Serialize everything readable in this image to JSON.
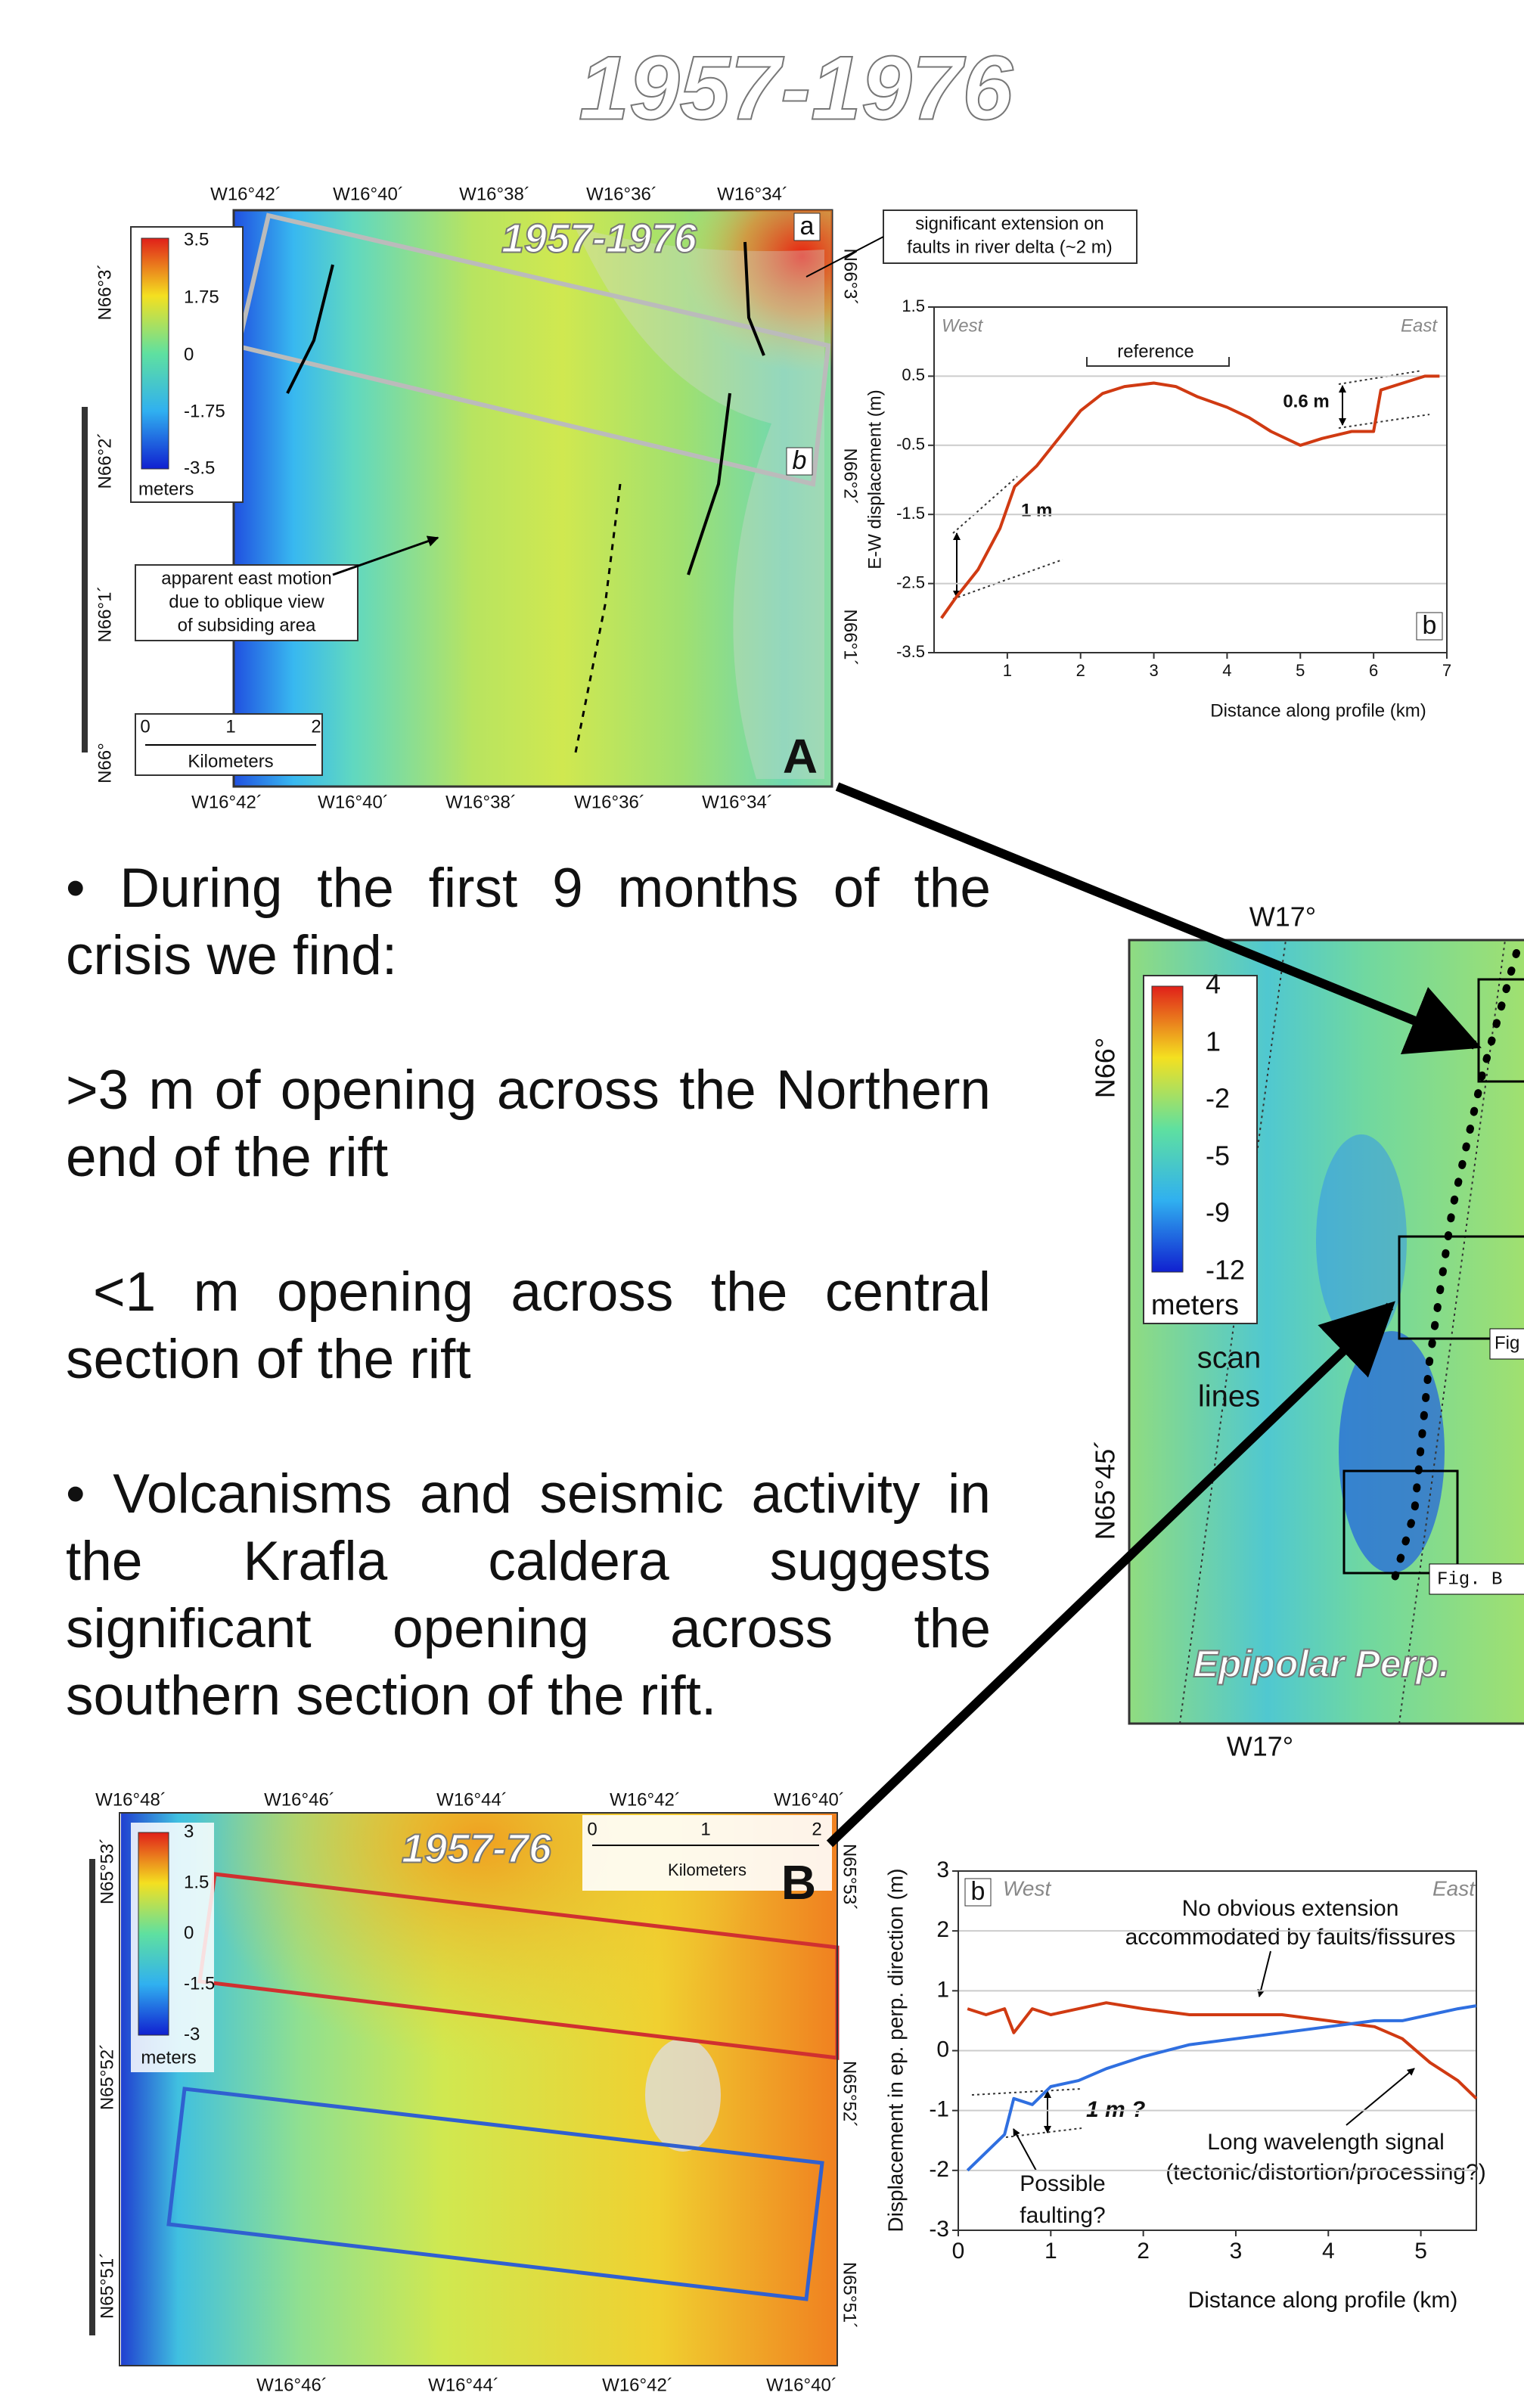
{
  "title": "1957-1976",
  "map_a": {
    "inset_title": "1957-1976",
    "panel_label": "A",
    "strip_labels": [
      "a",
      "b"
    ],
    "lon_labels_top": [
      "W16°42´",
      "W16°40´",
      "W16°38´",
      "W16°36´",
      "W16°34´"
    ],
    "lon_labels_bottom": [
      "W16°42´",
      "W16°40´",
      "W16°38´",
      "W16°36´",
      "W16°34´"
    ],
    "lat_labels_left": [
      "N66°3´",
      "N66°2´",
      "N66°1´",
      "N66°"
    ],
    "lat_labels_right": [
      "N66°3´",
      "N66°2´",
      "N66°1´"
    ],
    "colorbar_ticks": [
      "3.5",
      "1.75",
      "0",
      "-1.75",
      "-3.5"
    ],
    "colorbar_unit": "meters",
    "scale_ticks": [
      "0",
      "1",
      "2"
    ],
    "scale_unit": "Kilometers",
    "annotation": [
      "apparent east motion",
      "due to oblique view",
      "of subsiding area"
    ],
    "callout": [
      "significant extension on",
      "faults in river delta (~2 m)"
    ]
  },
  "text": {
    "paragraphs": [
      "• During the first 9 months of the crisis we find:",
      ">3 m of opening across the Northern end of the rift",
      "<1 m opening across the central section of the rift",
      "• Volcanisms and seismic activity in the Krafla caldera suggests significant opening across the southern section of the rift."
    ]
  },
  "map_right": {
    "lon_label_top": "W17°",
    "lon_label_bottom": "W17°",
    "lat_labels": [
      "N66°",
      "N65°45´"
    ],
    "colorbar_ticks": [
      "4",
      "1",
      "-2",
      "-5",
      "-9",
      "-12"
    ],
    "colorbar_unit": "meters",
    "annotation": [
      "scan",
      "lines"
    ],
    "box_labels": [
      "Fig",
      "Fig. B"
    ],
    "inset_title": "Epipolar Perp."
  },
  "map_b": {
    "inset_title": "1957-76",
    "panel_label": "B",
    "lon_labels_top": [
      "W16°48´",
      "W16°46´",
      "W16°44´",
      "W16°42´",
      "W16°40´"
    ],
    "lon_labels_bottom": [
      "W16°46´",
      "W16°44´",
      "W16°42´",
      "W16°40´"
    ],
    "lat_labels_left": [
      "N65°53´",
      "N65°52´",
      "N65°51´"
    ],
    "lat_labels_right": [
      "N65°53´",
      "N65°52´",
      "N65°51´"
    ],
    "colorbar_ticks": [
      "3",
      "1.5",
      "0",
      "-1.5",
      "-3"
    ],
    "colorbar_unit": "meters",
    "scale_ticks": [
      "0",
      "1",
      "2"
    ],
    "scale_unit": "Kilometers"
  },
  "chart_data": [
    {
      "type": "line",
      "y_label": "E-W displacement (m)",
      "x_label": "Distance along profile (km)",
      "annotations": [
        "West",
        "East",
        "reference",
        "0.6 m",
        "1 m",
        "b"
      ],
      "x": [
        0.1,
        0.3,
        0.6,
        0.9,
        1.1,
        1.4,
        1.7,
        2.0,
        2.3,
        2.6,
        3.0,
        3.3,
        3.6,
        4.0,
        4.3,
        4.6,
        5.0,
        5.3,
        5.7,
        6.0,
        6.1,
        6.4,
        6.7,
        6.9
      ],
      "series": [
        {
          "color": "#d03a12",
          "values": [
            -3.0,
            -2.7,
            -2.3,
            -1.7,
            -1.1,
            -0.8,
            -0.4,
            0.0,
            0.25,
            0.35,
            0.4,
            0.35,
            0.2,
            0.05,
            -0.1,
            -0.3,
            -0.5,
            -0.4,
            -0.3,
            -0.3,
            0.3,
            0.4,
            0.5,
            0.5
          ]
        }
      ],
      "xlim": [
        0,
        7
      ],
      "ylim": [
        -3.5,
        1.5
      ],
      "xticks": [
        1,
        2,
        3,
        4,
        5,
        6,
        7
      ],
      "yticks": [
        -3.5,
        -2.5,
        -1.5,
        -0.5,
        0.5,
        1.5
      ],
      "grid": true
    },
    {
      "type": "line",
      "y_label": "Displacement in ep. perp. direction (m)",
      "x_label": "Distance along profile (km)",
      "annotations": [
        "West",
        "East",
        "No obvious extension",
        "accommodated by faults/fissures",
        "1 m ?",
        "Possible",
        "faulting?",
        "Long wavelength signal",
        "(tectonic/distortion/processing?)",
        "b"
      ],
      "x": [
        0.1,
        0.3,
        0.5,
        0.6,
        0.8,
        1.0,
        1.3,
        1.6,
        2.0,
        2.5,
        3.0,
        3.5,
        4.0,
        4.5,
        4.8,
        5.1,
        5.4,
        5.6
      ],
      "series": [
        {
          "color": "#d03a12",
          "values": [
            0.7,
            0.6,
            0.7,
            0.3,
            0.7,
            0.6,
            0.7,
            0.8,
            0.7,
            0.6,
            0.6,
            0.6,
            0.5,
            0.4,
            0.2,
            -0.2,
            -0.5,
            -0.8
          ]
        },
        {
          "color": "#2f6fe0",
          "values": [
            -2.0,
            -1.7,
            -1.4,
            -0.8,
            -0.9,
            -0.6,
            -0.5,
            -0.3,
            -0.1,
            0.1,
            0.2,
            0.3,
            0.4,
            0.5,
            0.5,
            0.6,
            0.7,
            0.75
          ]
        }
      ],
      "xlim": [
        0,
        5.6
      ],
      "ylim": [
        -3,
        3
      ],
      "xticks": [
        0,
        1,
        2,
        3,
        4,
        5
      ],
      "yticks": [
        -3,
        -2,
        -1,
        0,
        1,
        2,
        3
      ],
      "grid": true
    }
  ]
}
